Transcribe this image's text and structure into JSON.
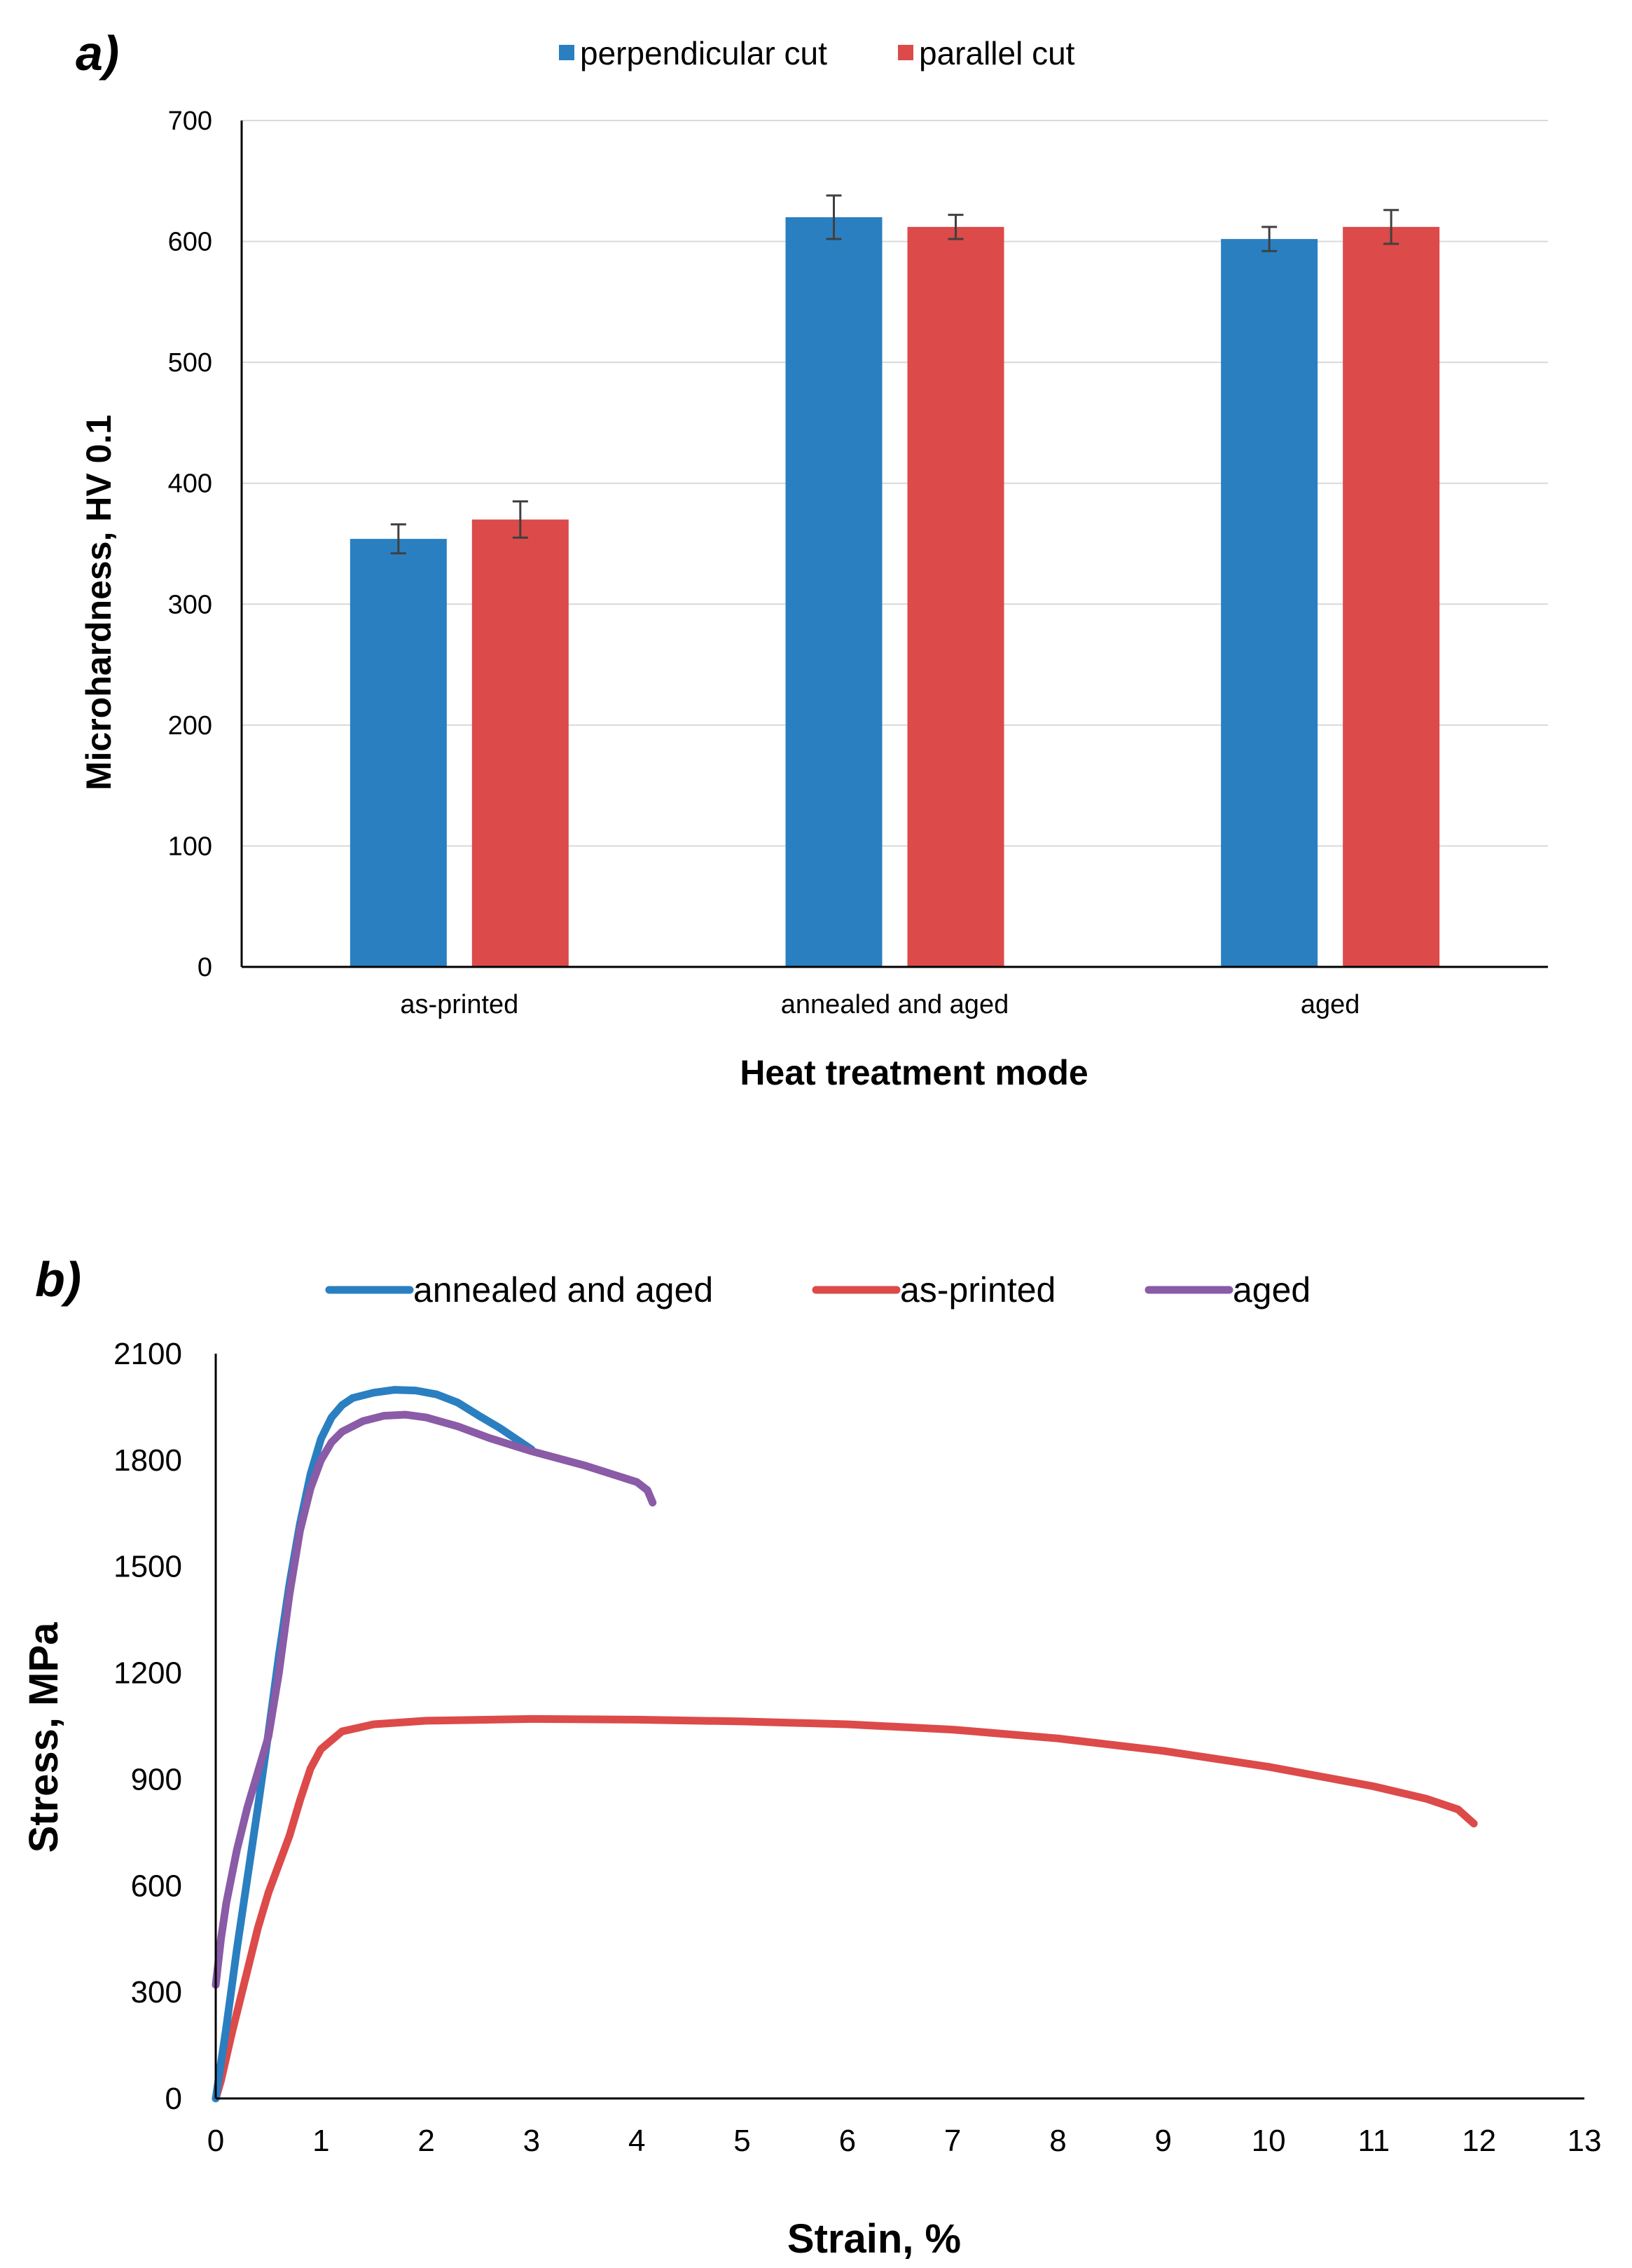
{
  "panel_a_label": "a)",
  "panel_b_label": "b)",
  "chart_data": [
    {
      "type": "bar",
      "title": "",
      "xlabel": "Heat treatment mode",
      "ylabel": "Microhardness, HV 0.1",
      "ylim": [
        0,
        700
      ],
      "yticks": [
        0,
        100,
        200,
        300,
        400,
        500,
        600,
        700
      ],
      "categories": [
        "as-printed",
        "annealed and aged",
        "aged"
      ],
      "series": [
        {
          "name": "perpendicular cut",
          "color": "#2a7fc1",
          "values": [
            354,
            620,
            602
          ],
          "errors": [
            12,
            18,
            10
          ]
        },
        {
          "name": "parallel cut",
          "color": "#dc4a4a",
          "values": [
            370,
            612,
            612
          ],
          "errors": [
            15,
            10,
            14
          ]
        }
      ],
      "legend_position": "top-center",
      "grid": true
    },
    {
      "type": "line",
      "title": "",
      "xlabel": "Strain, %",
      "ylabel": "Stress, MPa",
      "xlim": [
        0,
        13
      ],
      "ylim": [
        0,
        2100
      ],
      "xticks": [
        0,
        1,
        2,
        3,
        4,
        5,
        6,
        7,
        8,
        9,
        10,
        11,
        12,
        13
      ],
      "yticks": [
        0,
        300,
        600,
        900,
        1200,
        1500,
        1800,
        2100
      ],
      "legend_position": "top-center",
      "grid": false,
      "series": [
        {
          "name": "annealed and aged",
          "color": "#2a7fc1",
          "x": [
            0,
            0.1,
            0.2,
            0.3,
            0.4,
            0.5,
            0.6,
            0.7,
            0.8,
            0.9,
            1.0,
            1.1,
            1.2,
            1.3,
            1.5,
            1.7,
            1.9,
            2.1,
            2.3,
            2.5,
            2.7,
            3.0
          ],
          "y": [
            0,
            200,
            420,
            620,
            820,
            1030,
            1250,
            1450,
            1620,
            1760,
            1860,
            1920,
            1955,
            1975,
            1990,
            1998,
            1996,
            1985,
            1962,
            1925,
            1890,
            1830
          ]
        },
        {
          "name": "as-printed",
          "color": "#dc4a4a",
          "x": [
            0,
            0.05,
            0.15,
            0.3,
            0.4,
            0.5,
            0.6,
            0.7,
            0.8,
            0.9,
            1.0,
            1.2,
            1.5,
            2.0,
            3.0,
            4.0,
            5.0,
            6.0,
            7.0,
            8.0,
            9.0,
            10.0,
            11.0,
            11.5,
            11.8,
            11.95
          ],
          "y": [
            0,
            50,
            180,
            360,
            480,
            580,
            660,
            740,
            840,
            930,
            985,
            1035,
            1055,
            1065,
            1070,
            1068,
            1063,
            1055,
            1040,
            1015,
            980,
            935,
            880,
            845,
            815,
            775
          ]
        },
        {
          "name": "aged",
          "color": "#8a5ba6",
          "x": [
            0,
            0.05,
            0.1,
            0.2,
            0.3,
            0.4,
            0.5,
            0.6,
            0.7,
            0.8,
            0.9,
            1.0,
            1.1,
            1.2,
            1.4,
            1.6,
            1.8,
            2.0,
            2.3,
            2.6,
            3.0,
            3.5,
            4.0,
            4.1,
            4.15
          ],
          "y": [
            320,
            450,
            550,
            700,
            820,
            920,
            1020,
            1200,
            1420,
            1600,
            1720,
            1800,
            1850,
            1880,
            1910,
            1925,
            1928,
            1920,
            1895,
            1862,
            1825,
            1785,
            1738,
            1715,
            1680
          ]
        }
      ]
    }
  ]
}
